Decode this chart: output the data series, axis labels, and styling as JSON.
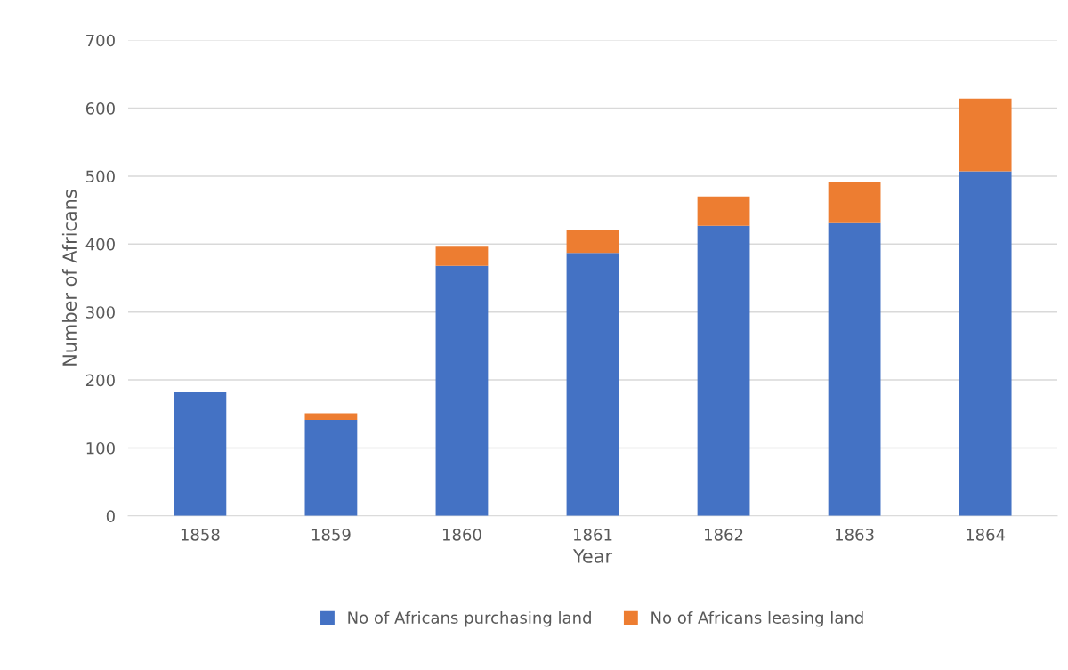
{
  "chart_data": {
    "type": "bar",
    "stacked": true,
    "xlabel": "Year",
    "ylabel": "Number of Africans",
    "categories": [
      "1858",
      "1859",
      "1860",
      "1861",
      "1862",
      "1863",
      "1864"
    ],
    "series": [
      {
        "name": "No of Africans purchasing land",
        "color": "#4472c4",
        "values": [
          183,
          141,
          368,
          387,
          427,
          431,
          507
        ]
      },
      {
        "name": "No of Africans leasing land",
        "color": "#ed7d31",
        "values": [
          0,
          10,
          28,
          34,
          43,
          61,
          107
        ]
      }
    ],
    "ylim": [
      0,
      700
    ],
    "yticks": [
      0,
      100,
      200,
      300,
      400,
      500,
      600,
      700
    ],
    "grid": "y",
    "legend": "bottom"
  }
}
